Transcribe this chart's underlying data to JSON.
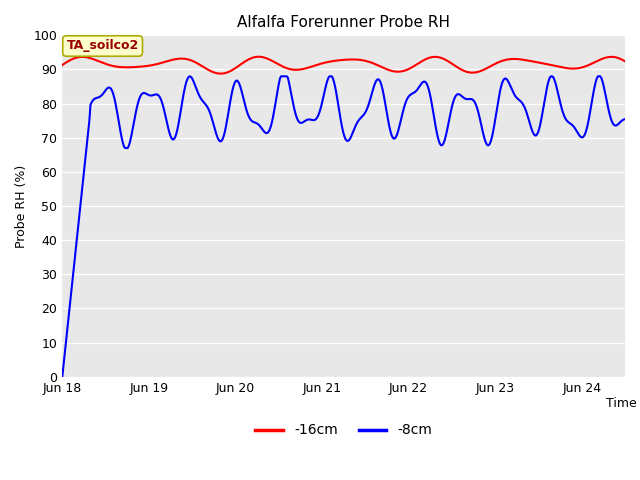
{
  "title": "Alfalfa Forerunner Probe RH",
  "ylabel": "Probe RH (%)",
  "xlabel": "Time",
  "annotation_text": "TA_soilco2",
  "annotation_bg": "#ffffcc",
  "annotation_border": "#aaaa00",
  "annotation_text_color": "#990000",
  "plot_bg": "#e8e8e8",
  "fig_bg": "#ffffff",
  "ylim": [
    0,
    100
  ],
  "yticks": [
    0,
    10,
    20,
    30,
    40,
    50,
    60,
    70,
    80,
    90,
    100
  ],
  "xtick_labels": [
    "Jun 18",
    "Jun 19",
    "Jun 20",
    "Jun 21",
    "Jun 22",
    "Jun 23",
    "Jun 24"
  ],
  "line_red_color": "#ff0000",
  "line_blue_color": "#0000ff",
  "legend_labels": [
    "-16cm",
    "-8cm"
  ],
  "legend_colors": [
    "#ff0000",
    "#0000ff"
  ],
  "xlim_max": 6.5
}
